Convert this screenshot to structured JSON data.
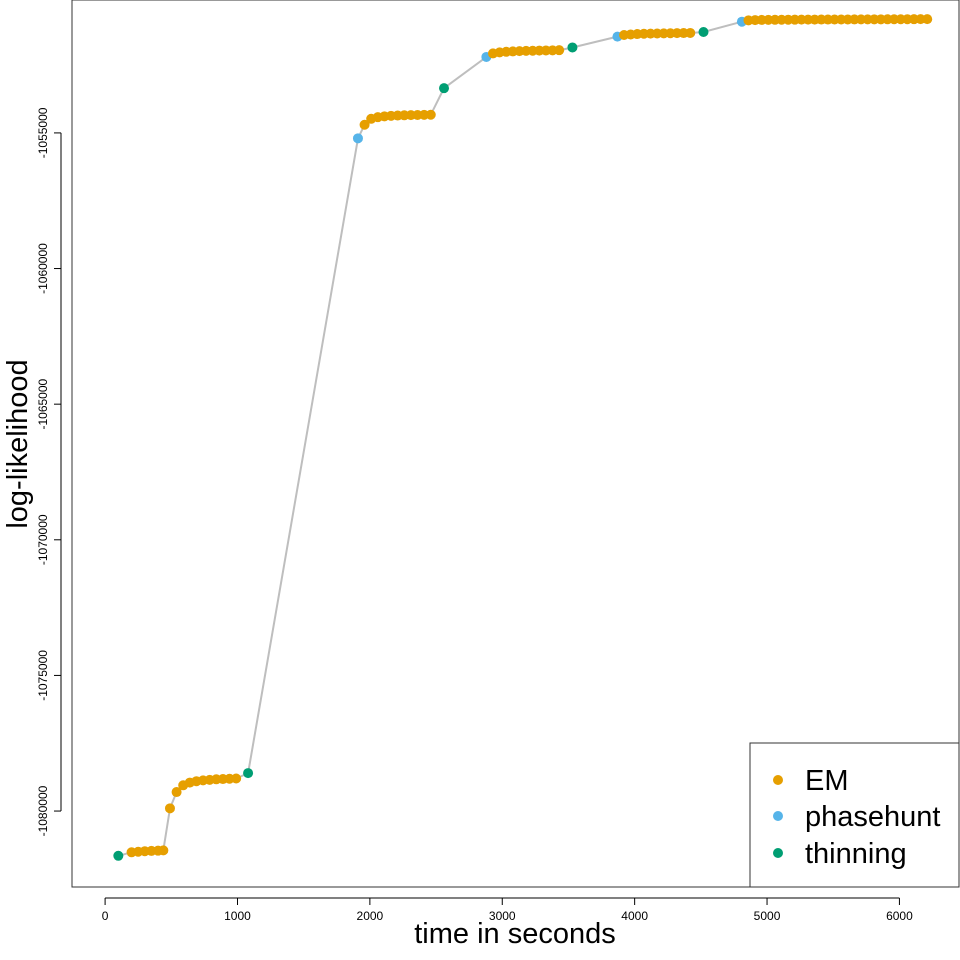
{
  "chart_data": {
    "type": "scatter",
    "title": "",
    "xlabel": "time in seconds",
    "ylabel": "log-likelihood",
    "xlim": [
      -250,
      6450
    ],
    "ylim": [
      -1082800,
      -1050100
    ],
    "xticks": [
      0,
      1000,
      2000,
      3000,
      4000,
      5000,
      6000
    ],
    "yticks": [
      -1080000,
      -1075000,
      -1070000,
      -1065000,
      -1060000,
      -1055000
    ],
    "grid": false,
    "legend_position": "bottom-right",
    "connector_line_color": "#bebebe",
    "colors": {
      "EM": "#E69F00",
      "phasehunt": "#56B4E9",
      "thinning": "#009E73"
    },
    "legend": [
      {
        "label": "EM",
        "series": "EM"
      },
      {
        "label": "phasehunt",
        "series": "phasehunt"
      },
      {
        "label": "thinning",
        "series": "thinning"
      }
    ],
    "points": [
      {
        "x": 100,
        "y": -1081650,
        "s": "thinning"
      },
      {
        "x": 200,
        "y": -1081520,
        "s": "EM"
      },
      {
        "x": 250,
        "y": -1081500,
        "s": "EM"
      },
      {
        "x": 300,
        "y": -1081480,
        "s": "EM"
      },
      {
        "x": 350,
        "y": -1081470,
        "s": "EM"
      },
      {
        "x": 400,
        "y": -1081460,
        "s": "EM"
      },
      {
        "x": 440,
        "y": -1081450,
        "s": "EM"
      },
      {
        "x": 490,
        "y": -1079900,
        "s": "EM"
      },
      {
        "x": 540,
        "y": -1079300,
        "s": "EM"
      },
      {
        "x": 590,
        "y": -1079050,
        "s": "EM"
      },
      {
        "x": 640,
        "y": -1078950,
        "s": "EM"
      },
      {
        "x": 690,
        "y": -1078900,
        "s": "EM"
      },
      {
        "x": 740,
        "y": -1078870,
        "s": "EM"
      },
      {
        "x": 790,
        "y": -1078850,
        "s": "EM"
      },
      {
        "x": 840,
        "y": -1078830,
        "s": "EM"
      },
      {
        "x": 890,
        "y": -1078820,
        "s": "EM"
      },
      {
        "x": 940,
        "y": -1078810,
        "s": "EM"
      },
      {
        "x": 990,
        "y": -1078800,
        "s": "EM"
      },
      {
        "x": 1080,
        "y": -1078600,
        "s": "thinning"
      },
      {
        "x": 1910,
        "y": -1055200,
        "s": "phasehunt"
      },
      {
        "x": 1960,
        "y": -1054700,
        "s": "EM"
      },
      {
        "x": 2010,
        "y": -1054480,
        "s": "EM"
      },
      {
        "x": 2060,
        "y": -1054420,
        "s": "EM"
      },
      {
        "x": 2110,
        "y": -1054390,
        "s": "EM"
      },
      {
        "x": 2160,
        "y": -1054370,
        "s": "EM"
      },
      {
        "x": 2210,
        "y": -1054360,
        "s": "EM"
      },
      {
        "x": 2260,
        "y": -1054350,
        "s": "EM"
      },
      {
        "x": 2310,
        "y": -1054345,
        "s": "EM"
      },
      {
        "x": 2360,
        "y": -1054340,
        "s": "EM"
      },
      {
        "x": 2410,
        "y": -1054335,
        "s": "EM"
      },
      {
        "x": 2460,
        "y": -1054330,
        "s": "EM"
      },
      {
        "x": 2560,
        "y": -1053350,
        "s": "thinning"
      },
      {
        "x": 2880,
        "y": -1052200,
        "s": "phasehunt"
      },
      {
        "x": 2930,
        "y": -1052070,
        "s": "EM"
      },
      {
        "x": 2980,
        "y": -1052030,
        "s": "EM"
      },
      {
        "x": 3030,
        "y": -1052010,
        "s": "EM"
      },
      {
        "x": 3080,
        "y": -1051995,
        "s": "EM"
      },
      {
        "x": 3130,
        "y": -1051985,
        "s": "EM"
      },
      {
        "x": 3180,
        "y": -1051975,
        "s": "EM"
      },
      {
        "x": 3230,
        "y": -1051970,
        "s": "EM"
      },
      {
        "x": 3280,
        "y": -1051965,
        "s": "EM"
      },
      {
        "x": 3330,
        "y": -1051960,
        "s": "EM"
      },
      {
        "x": 3380,
        "y": -1051955,
        "s": "EM"
      },
      {
        "x": 3430,
        "y": -1051950,
        "s": "EM"
      },
      {
        "x": 3530,
        "y": -1051850,
        "s": "thinning"
      },
      {
        "x": 3870,
        "y": -1051450,
        "s": "phasehunt"
      },
      {
        "x": 3920,
        "y": -1051390,
        "s": "EM"
      },
      {
        "x": 3970,
        "y": -1051370,
        "s": "EM"
      },
      {
        "x": 4020,
        "y": -1051355,
        "s": "EM"
      },
      {
        "x": 4070,
        "y": -1051345,
        "s": "EM"
      },
      {
        "x": 4120,
        "y": -1051340,
        "s": "EM"
      },
      {
        "x": 4170,
        "y": -1051335,
        "s": "EM"
      },
      {
        "x": 4220,
        "y": -1051330,
        "s": "EM"
      },
      {
        "x": 4270,
        "y": -1051325,
        "s": "EM"
      },
      {
        "x": 4320,
        "y": -1051320,
        "s": "EM"
      },
      {
        "x": 4370,
        "y": -1051318,
        "s": "EM"
      },
      {
        "x": 4420,
        "y": -1051315,
        "s": "EM"
      },
      {
        "x": 4520,
        "y": -1051280,
        "s": "thinning"
      },
      {
        "x": 4810,
        "y": -1050900,
        "s": "phasehunt"
      },
      {
        "x": 4860,
        "y": -1050850,
        "s": "EM"
      },
      {
        "x": 4910,
        "y": -1050840,
        "s": "EM"
      },
      {
        "x": 4960,
        "y": -1050835,
        "s": "EM"
      },
      {
        "x": 5010,
        "y": -1050832,
        "s": "EM"
      },
      {
        "x": 5060,
        "y": -1050830,
        "s": "EM"
      },
      {
        "x": 5110,
        "y": -1050828,
        "s": "EM"
      },
      {
        "x": 5160,
        "y": -1050826,
        "s": "EM"
      },
      {
        "x": 5210,
        "y": -1050825,
        "s": "EM"
      },
      {
        "x": 5260,
        "y": -1050824,
        "s": "EM"
      },
      {
        "x": 5310,
        "y": -1050823,
        "s": "EM"
      },
      {
        "x": 5360,
        "y": -1050822,
        "s": "EM"
      },
      {
        "x": 5410,
        "y": -1050821,
        "s": "EM"
      },
      {
        "x": 5460,
        "y": -1050820,
        "s": "EM"
      },
      {
        "x": 5510,
        "y": -1050819,
        "s": "EM"
      },
      {
        "x": 5560,
        "y": -1050818,
        "s": "EM"
      },
      {
        "x": 5610,
        "y": -1050817,
        "s": "EM"
      },
      {
        "x": 5660,
        "y": -1050816,
        "s": "EM"
      },
      {
        "x": 5710,
        "y": -1050815,
        "s": "EM"
      },
      {
        "x": 5760,
        "y": -1050814,
        "s": "EM"
      },
      {
        "x": 5810,
        "y": -1050813,
        "s": "EM"
      },
      {
        "x": 5860,
        "y": -1050812,
        "s": "EM"
      },
      {
        "x": 5910,
        "y": -1050811,
        "s": "EM"
      },
      {
        "x": 5960,
        "y": -1050810,
        "s": "EM"
      },
      {
        "x": 6010,
        "y": -1050809,
        "s": "EM"
      },
      {
        "x": 6060,
        "y": -1050808,
        "s": "EM"
      },
      {
        "x": 6110,
        "y": -1050807,
        "s": "EM"
      },
      {
        "x": 6160,
        "y": -1050806,
        "s": "EM"
      },
      {
        "x": 6210,
        "y": -1050805,
        "s": "EM"
      }
    ]
  }
}
